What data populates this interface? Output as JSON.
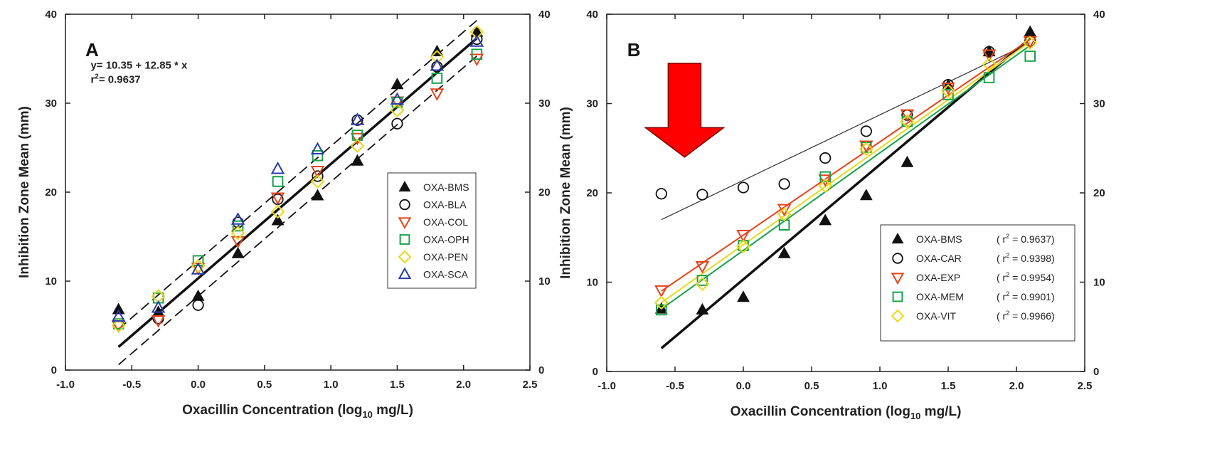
{
  "chart_data": [
    {
      "type": "scatter",
      "panel_label": "A",
      "xlabel": "Oxacillin Concentration (log",
      "xlabel_sub": "10",
      "xlabel_tail": " mg/L)",
      "ylabel": "Inhibition Zone Mean (mm)",
      "xlim": [
        -1.0,
        2.5
      ],
      "ylim": [
        0,
        40
      ],
      "x_ticks": [
        "-1.0",
        "-0.5",
        "0.0",
        "0.5",
        "1.0",
        "1.5",
        "2.0",
        "2.5"
      ],
      "y_ticks": [
        "0",
        "10",
        "20",
        "30",
        "40"
      ],
      "equation": "y= 10.35 + 12.85 * x",
      "r2_prefix": "r",
      "r2_value": "= 0.9637",
      "legend_position": "right-middle",
      "fit_lines": [
        {
          "kind": "regression",
          "color": "#111111",
          "points": [
            [
              -0.6,
              2.6
            ],
            [
              2.1,
              37.3
            ]
          ]
        },
        {
          "kind": "upper-band",
          "color": "#111111",
          "points": [
            [
              -0.6,
              4.6
            ],
            [
              2.1,
              39.3
            ]
          ]
        },
        {
          "kind": "lower-band",
          "color": "#111111",
          "points": [
            [
              -0.6,
              0.6
            ],
            [
              2.1,
              35.3
            ]
          ]
        }
      ],
      "series": [
        {
          "name": "OXA-BMS",
          "marker": "triangle-filled",
          "color": "#111111",
          "x": [
            -0.6,
            -0.3,
            0.0,
            0.3,
            0.6,
            0.9,
            1.2,
            1.5,
            1.8,
            2.1
          ],
          "y": [
            6.8,
            6.5,
            8.3,
            13.1,
            16.8,
            19.6,
            23.5,
            32.1,
            35.8,
            38.0
          ]
        },
        {
          "name": "OXA-BLA",
          "marker": "circle",
          "color": "#111111",
          "x": [
            -0.3,
            0.0,
            0.3,
            0.6,
            0.9,
            1.2,
            1.5,
            1.8,
            2.1
          ],
          "y": [
            5.8,
            7.3,
            16.6,
            19.2,
            21.8,
            28.1,
            27.7,
            34.1,
            37.2
          ]
        },
        {
          "name": "OXA-COL",
          "marker": "triangle-down",
          "color": "#e8421a",
          "x": [
            -0.6,
            -0.3,
            0.0,
            0.3,
            0.6,
            0.9,
            1.2,
            1.5,
            1.8,
            2.1
          ],
          "y": [
            5.0,
            5.6,
            11.5,
            14.5,
            19.4,
            22.4,
            26.1,
            30.2,
            31.1,
            35.0
          ]
        },
        {
          "name": "OXA-OPH",
          "marker": "square",
          "color": "#17a34a",
          "x": [
            -0.6,
            -0.3,
            0.0,
            0.3,
            0.6,
            0.9,
            1.2,
            1.5,
            1.8,
            2.1
          ],
          "y": [
            5.2,
            8.1,
            12.3,
            16.2,
            21.2,
            24.1,
            26.4,
            30.1,
            32.8,
            35.5
          ]
        },
        {
          "name": "OXA-PEN",
          "marker": "diamond",
          "color": "#e8d81a",
          "x": [
            -0.6,
            -0.3,
            0.0,
            0.3,
            0.6,
            0.9,
            1.2,
            1.5,
            1.8,
            2.1
          ],
          "y": [
            5.0,
            8.3,
            11.7,
            15.4,
            17.8,
            21.2,
            25.2,
            29.2,
            35.2,
            38.0
          ]
        },
        {
          "name": "OXA-SCA",
          "marker": "triangle-up",
          "color": "#2a3aa8",
          "x": [
            -0.6,
            -0.3,
            0.0,
            0.3,
            0.6,
            0.9,
            1.2,
            1.5,
            1.8,
            2.1
          ],
          "y": [
            6.0,
            7.0,
            11.3,
            16.9,
            22.6,
            24.8,
            28.1,
            30.4,
            34.2,
            36.9
          ]
        }
      ]
    },
    {
      "type": "scatter",
      "panel_label": "B",
      "xlabel": "Oxacillin Concentration (log",
      "xlabel_sub": "10",
      "xlabel_tail": " mg/L)",
      "ylabel": "Inhibition Zone Mean (mm)",
      "xlim": [
        -1.0,
        2.5
      ],
      "ylim": [
        0,
        40
      ],
      "x_ticks": [
        "-1.0",
        "-0.5",
        "0.0",
        "0.5",
        "1.0",
        "1.5",
        "2.0",
        "2.5"
      ],
      "y_ticks": [
        "0",
        "10",
        "20",
        "30",
        "40"
      ],
      "legend_position": "right-middle",
      "annotation_arrow": {
        "color": "#ff0000",
        "direction": "down",
        "points_to_x": -0.3
      },
      "fit_lines": [
        {
          "series": "OXA-BMS",
          "color": "#111111",
          "width": 3.5,
          "points": [
            [
              -0.6,
              2.6
            ],
            [
              2.1,
              37.3
            ]
          ]
        },
        {
          "series": "OXA-CAR",
          "color": "#333333",
          "width": 1.2,
          "points": [
            [
              -0.6,
              17.0
            ],
            [
              2.1,
              36.8
            ]
          ]
        },
        {
          "series": "OXA-EXP",
          "color": "#e8421a",
          "width": 2,
          "points": [
            [
              -0.6,
              9.0
            ],
            [
              2.1,
              37.2
            ]
          ]
        },
        {
          "series": "OXA-MEM",
          "color": "#17a34a",
          "width": 2,
          "points": [
            [
              -0.6,
              7.0
            ],
            [
              2.1,
              36.5
            ]
          ]
        },
        {
          "series": "OXA-VIT",
          "color": "#e8d81a",
          "width": 2,
          "points": [
            [
              -0.6,
              7.7
            ],
            [
              2.1,
              36.9
            ]
          ]
        }
      ],
      "series": [
        {
          "name": "OXA-BMS",
          "r2": "0.9637",
          "marker": "triangle-filled",
          "color": "#111111",
          "x": [
            -0.6,
            -0.3,
            0.0,
            0.3,
            0.6,
            0.9,
            1.2,
            1.5,
            1.8,
            2.1
          ],
          "y": [
            7.0,
            6.9,
            8.3,
            13.2,
            16.9,
            19.7,
            23.4,
            32.0,
            35.8,
            38.0
          ]
        },
        {
          "name": "OXA-CAR",
          "r2": "0.9398",
          "marker": "circle",
          "color": "#111111",
          "x": [
            -0.6,
            -0.3,
            0.0,
            0.3,
            0.6,
            0.9,
            1.2,
            1.5,
            1.8,
            2.1
          ],
          "y": [
            19.9,
            19.8,
            20.6,
            21.0,
            23.9,
            26.9,
            28.7,
            32.1,
            35.8,
            37.0
          ]
        },
        {
          "name": "OXA-EXP",
          "r2": "0.9954",
          "marker": "triangle-down",
          "color": "#e8421a",
          "x": [
            -0.6,
            -0.3,
            0.0,
            0.3,
            0.6,
            0.9,
            1.2,
            1.5,
            1.8,
            2.1
          ],
          "y": [
            9.1,
            11.8,
            15.3,
            18.2,
            21.5,
            25.3,
            28.8,
            31.8,
            35.5,
            37.0
          ]
        },
        {
          "name": "OXA-MEM",
          "r2": "0.9901",
          "marker": "square",
          "color": "#17a34a",
          "x": [
            -0.6,
            -0.3,
            0.0,
            0.3,
            0.6,
            0.9,
            1.2,
            1.5,
            1.8,
            2.1
          ],
          "y": [
            6.9,
            10.2,
            14.1,
            16.4,
            21.8,
            25.1,
            28.0,
            31.0,
            32.9,
            35.3
          ]
        },
        {
          "name": "OXA-VIT",
          "r2": "0.9966",
          "marker": "diamond",
          "color": "#e8d81a",
          "x": [
            -0.6,
            -0.3,
            0.0,
            0.3,
            0.6,
            0.9,
            1.2,
            1.5,
            1.8,
            2.1
          ],
          "y": [
            7.7,
            9.8,
            14.0,
            17.6,
            20.8,
            24.9,
            28.0,
            31.4,
            34.4,
            36.8
          ]
        }
      ]
    }
  ]
}
